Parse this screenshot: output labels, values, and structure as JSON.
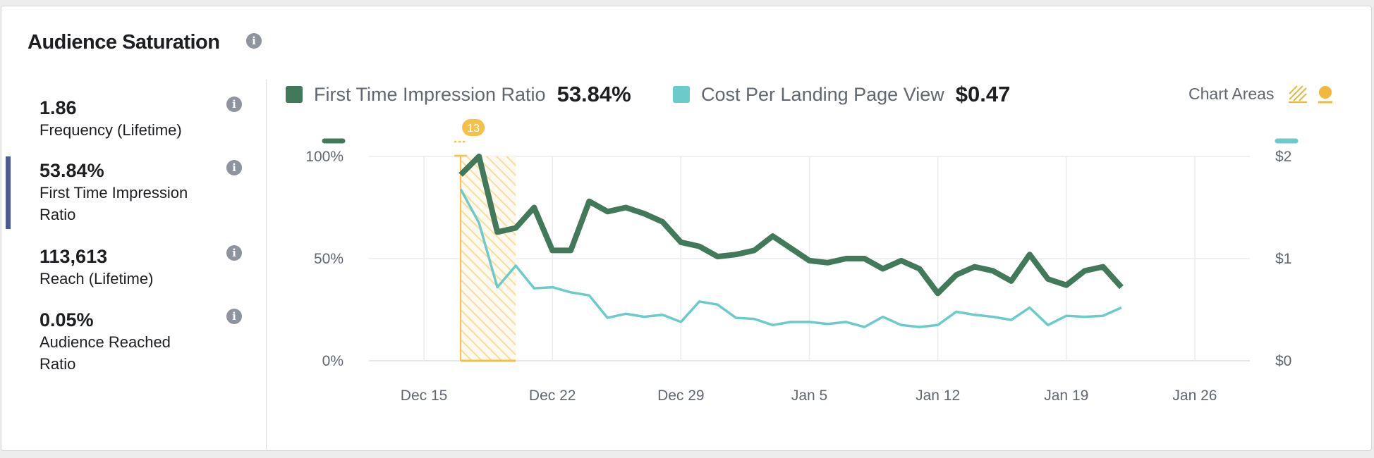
{
  "header": {
    "title": "Audience Saturation"
  },
  "stats": [
    {
      "value": "1.86",
      "label": "Frequency (Lifetime)"
    },
    {
      "value": "53.84%",
      "label": "First Time Impression Ratio"
    },
    {
      "value": "113,613",
      "label": "Reach (Lifetime)"
    },
    {
      "value": "0.05%",
      "label": "Audience Reached Ratio"
    }
  ],
  "legend": {
    "series1": {
      "label": "First Time Impression Ratio",
      "value": "53.84%",
      "color": "#42795a"
    },
    "series2": {
      "label": "Cost Per Landing Page View",
      "value": "$0.47",
      "color": "#6bcbcb"
    },
    "chart_areas_label": "Chart Areas",
    "highlight_color": "#f5c04a"
  },
  "chart_data": {
    "type": "line",
    "x_ticks": [
      "Dec 15",
      "Dec 22",
      "Dec 29",
      "Jan 5",
      "Jan 12",
      "Jan 19",
      "Jan 26"
    ],
    "x_range": [
      "Dec 12",
      "Jan 29"
    ],
    "x_start": "Dec 17",
    "y_left": {
      "ticks": [
        "100%",
        "50%",
        "0%"
      ],
      "range": [
        0,
        100
      ]
    },
    "y_right": {
      "ticks": [
        "$2",
        "$1",
        "$0"
      ],
      "range": [
        0,
        2
      ]
    },
    "grid": true,
    "highlight_area": {
      "badge": "13",
      "start": "Dec 17",
      "end": "Dec 20"
    },
    "series": [
      {
        "name": "First Time Impression Ratio",
        "axis": "left",
        "values": [
          91,
          100,
          63,
          65,
          75,
          54,
          54,
          78,
          73,
          75,
          72,
          68,
          58,
          56,
          51,
          52,
          54,
          61,
          55,
          49,
          48,
          50,
          50,
          45,
          49,
          45,
          33,
          42,
          46,
          44,
          39,
          52,
          40,
          37,
          44,
          46,
          36
        ]
      },
      {
        "name": "Cost Per Landing Page View",
        "axis": "right",
        "values": [
          1.68,
          1.35,
          0.72,
          0.93,
          0.71,
          0.72,
          0.67,
          0.64,
          0.42,
          0.46,
          0.43,
          0.45,
          0.38,
          0.58,
          0.55,
          0.42,
          0.41,
          0.35,
          0.38,
          0.38,
          0.36,
          0.38,
          0.33,
          0.43,
          0.35,
          0.33,
          0.35,
          0.48,
          0.45,
          0.43,
          0.4,
          0.52,
          0.35,
          0.44,
          0.43,
          0.44,
          0.52
        ]
      }
    ]
  }
}
